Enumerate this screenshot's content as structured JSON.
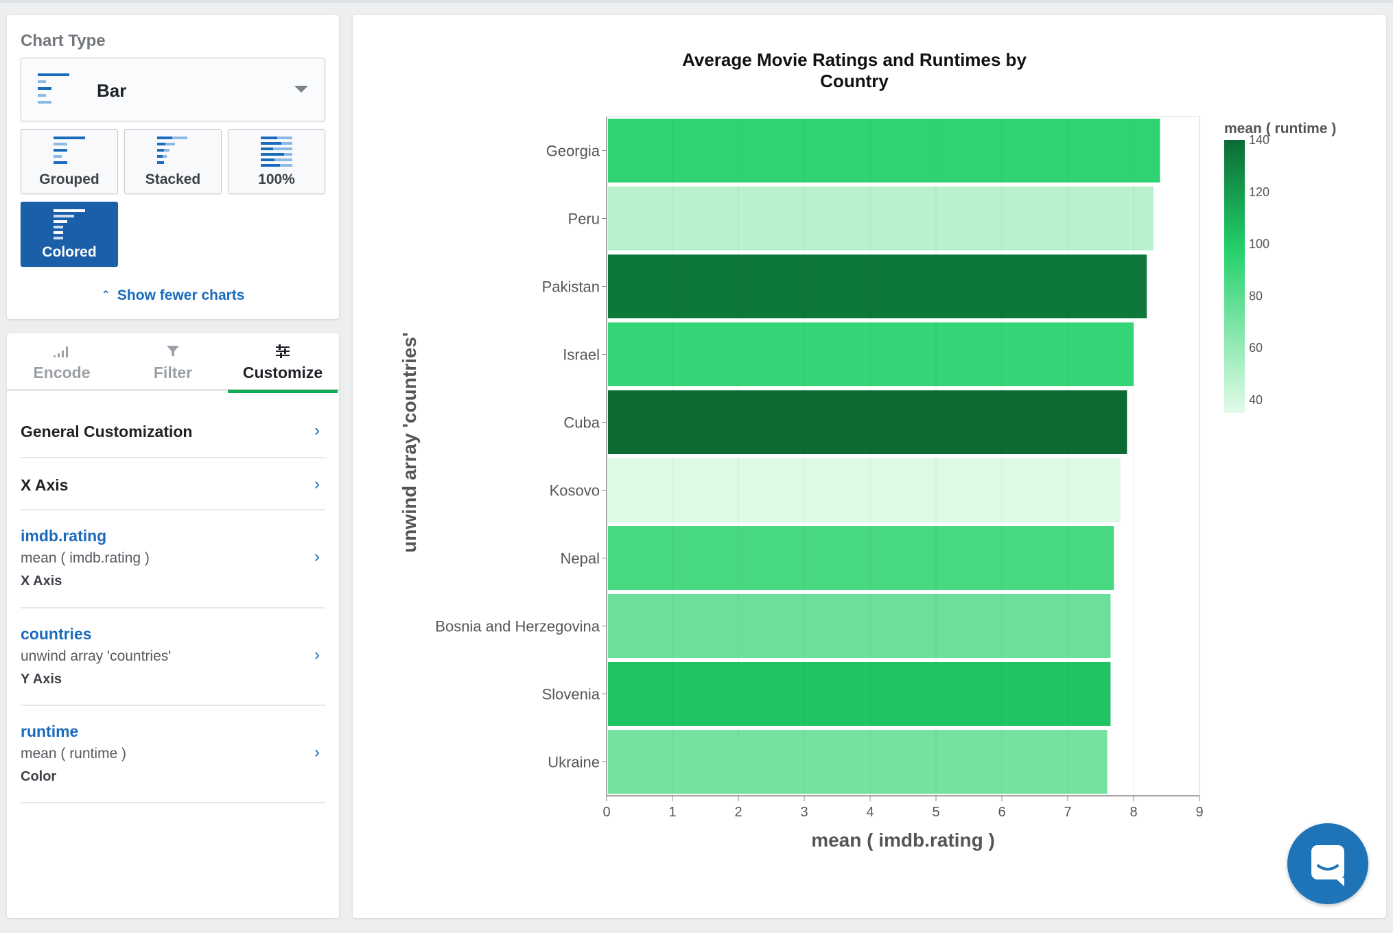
{
  "chart_type_panel": {
    "section_label": "Chart Type",
    "selected_type": "Bar",
    "variants": [
      "Grouped",
      "Stacked",
      "100%",
      "Colored"
    ],
    "active_variant": "Colored",
    "show_fewer_label": "Show fewer charts"
  },
  "tabs": [
    "Encode",
    "Filter",
    "Customize"
  ],
  "active_tab": "Customize",
  "customize": {
    "general": "General Customization",
    "x_axis": "X Axis",
    "fields": [
      {
        "field": "imdb.rating",
        "aggregation": "mean ( imdb.rating )",
        "role": "X Axis"
      },
      {
        "field": "countries",
        "aggregation": "unwind array 'countries'",
        "role": "Y Axis"
      },
      {
        "field": "runtime",
        "aggregation": "mean ( runtime )",
        "role": "Color"
      }
    ]
  },
  "colors": {
    "accent_green": "#13aa52",
    "link_blue": "#1a6bbd",
    "selected_blue": "#1a5fa8"
  },
  "chart_data": {
    "type": "bar",
    "orientation": "horizontal",
    "title": "Average Movie Ratings and Runtimes by Country",
    "xlabel": "mean ( imdb.rating )",
    "ylabel": "unwind array 'countries'",
    "xlim": [
      0,
      9
    ],
    "x_ticks": [
      0,
      1,
      2,
      3,
      4,
      5,
      6,
      7,
      8,
      9
    ],
    "grid": true,
    "legend_position": "right",
    "legend_title": "mean ( runtime )",
    "color_scale": {
      "min": 35,
      "max": 140,
      "ticks": [
        40,
        60,
        80,
        100,
        120,
        140
      ],
      "low_color": "#e3fbe9",
      "high_color": "#0b6b33"
    },
    "categories": [
      "Georgia",
      "Peru",
      "Pakistan",
      "Israel",
      "Cuba",
      "Kosovo",
      "Nepal",
      "Bosnia and Herzegovina",
      "Slovenia",
      "Ukraine"
    ],
    "series": [
      {
        "values": [
          8.4,
          8.3,
          8.2,
          8.0,
          7.9,
          7.8,
          7.7,
          7.65,
          7.65,
          7.6
        ]
      }
    ],
    "color_values": [
      94,
      49,
      135,
      92,
      140,
      37,
      86,
      74,
      103,
      71
    ]
  }
}
